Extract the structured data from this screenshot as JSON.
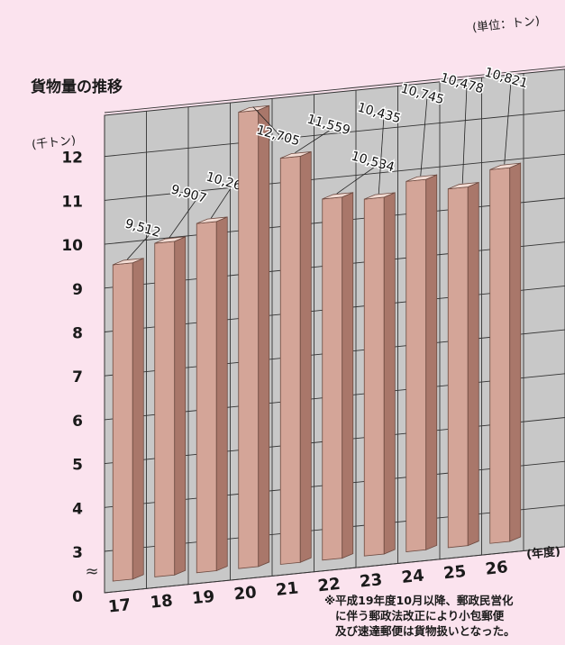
{
  "title": "貨物量の推移",
  "unit_note": "(単位：トン)",
  "footnote": {
    "line1": "※平成19年度10月以降、郵政民営化",
    "line2": "に伴う郵政法改正により小包郵便",
    "line3": "及び速達郵便は貨物扱いとなった。"
  },
  "chart_data": {
    "type": "bar",
    "title": "貨物量の推移",
    "xlabel": "(年度)",
    "ylabel": "(千トン)",
    "unit": "(単位：トン)",
    "categories": [
      "17",
      "18",
      "19",
      "20",
      "21",
      "22",
      "23",
      "24",
      "25",
      "26"
    ],
    "values": [
      9512,
      9907,
      10262,
      12705,
      11559,
      10534,
      10435,
      10745,
      10478,
      10821
    ],
    "value_labels": [
      "9,512",
      "9,907",
      "10,262",
      "12,705",
      "11,559",
      "10,534",
      "10,435",
      "10,745",
      "10,478",
      "10,821"
    ],
    "y_ticks": [
      "0",
      "3",
      "4",
      "5",
      "6",
      "7",
      "8",
      "9",
      "10",
      "11",
      "12"
    ],
    "axis_break": "≈",
    "ylim": [
      3,
      13
    ],
    "grid": true,
    "colors": {
      "background": "#fbe3ee",
      "grid_fill": "#c8c8c8",
      "bar_front": "#d4a598",
      "bar_side": "#a9776a",
      "bar_top": "#f3dcd4"
    }
  }
}
